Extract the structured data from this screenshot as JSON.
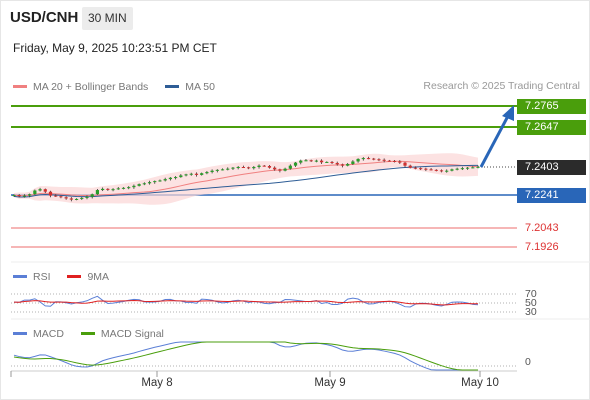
{
  "header": {
    "pair": "USD/CNH",
    "timeframe": "30 MIN",
    "datetime": "Friday, May 9, 2025 10:23:51 PM CET"
  },
  "legend_main": {
    "items": [
      {
        "label": "MA 20 + Bollinger Bands",
        "color": "#f08080"
      },
      {
        "label": "MA 50",
        "color": "#2e5d96"
      }
    ],
    "credit": "Research © 2025 Trading Central"
  },
  "legend_rsi": {
    "items": [
      {
        "label": "RSI",
        "color": "#5b7fd6"
      },
      {
        "label": "9MA",
        "color": "#e02020"
      }
    ]
  },
  "legend_macd": {
    "items": [
      {
        "label": "MACD",
        "color": "#5b7fd6"
      },
      {
        "label": "MACD Signal",
        "color": "#4a9e0c"
      }
    ]
  },
  "levels": {
    "r2": "7.2765",
    "r1": "7.2647",
    "last": "7.2403",
    "s1": "7.2241",
    "s2": "7.2043",
    "s3": "7.1926"
  },
  "rsi_axis": {
    "t70": "70",
    "t50": "50",
    "t30": "30"
  },
  "macd_axis": {
    "t0": "0"
  },
  "x_axis": {
    "ticks": [
      "May 8",
      "May 9",
      "May 10"
    ]
  },
  "colors": {
    "green_level": "#4a9e0c",
    "blue_level": "#2966b8",
    "red_level": "#f08a8a",
    "bull": "#2a9d2a",
    "bear": "#d23030"
  },
  "chart_data": [
    {
      "type": "candlestick",
      "title": "",
      "ylim": [
        7.186,
        7.282
      ],
      "close_series": [
        7.2235,
        7.2228,
        7.2232,
        7.224,
        7.2262,
        7.227,
        7.2255,
        7.2232,
        7.2228,
        7.2222,
        7.2215,
        7.2208,
        7.2212,
        7.2218,
        7.2225,
        7.224,
        7.2265,
        7.2272,
        7.2268,
        7.227,
        7.2275,
        7.2278,
        7.2282,
        7.229,
        7.23,
        7.2305,
        7.2312,
        7.2318,
        7.2322,
        7.233,
        7.2338,
        7.2342,
        7.2352,
        7.2358,
        7.2362,
        7.2355,
        7.2365,
        7.2372,
        7.238,
        7.2385,
        7.2388,
        7.2392,
        7.2398,
        7.2402,
        7.24,
        7.2395,
        7.2402,
        7.241,
        7.2408,
        7.2398,
        7.2388,
        7.238,
        7.2392,
        7.241,
        7.2428,
        7.244,
        7.2442,
        7.2438,
        7.244,
        7.243,
        7.2432,
        7.2426,
        7.2418,
        7.241,
        7.242,
        7.2435,
        7.245,
        7.2455,
        7.2452,
        7.2448,
        7.2445,
        7.244,
        7.2438,
        7.2435,
        7.2428,
        7.241,
        7.2398,
        7.2395,
        7.2392,
        7.2388,
        7.2385,
        7.2382,
        7.2378,
        7.238,
        7.2388,
        7.2392,
        7.2395,
        7.2398,
        7.24,
        7.2403
      ],
      "support_resistance": [
        7.2765,
        7.2647,
        7.2241,
        7.2043,
        7.1926
      ],
      "last": 7.2403
    },
    {
      "type": "line",
      "title": "RSI",
      "ylim": [
        20,
        80
      ],
      "reference_lines": [
        70,
        50,
        30
      ]
    },
    {
      "type": "line",
      "title": "MACD",
      "reference_lines": [
        0
      ]
    }
  ]
}
